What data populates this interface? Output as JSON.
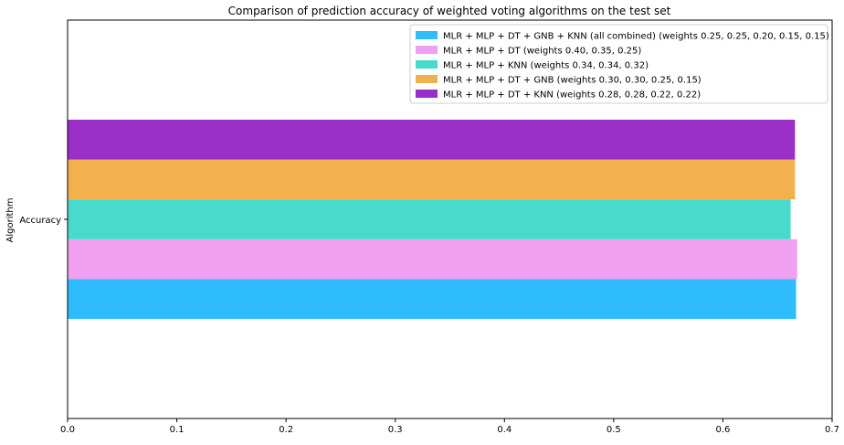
{
  "chart_data": {
    "type": "bar",
    "orientation": "horizontal",
    "title": "Comparison of prediction accuracy of weighted voting algorithms on the test set",
    "xlabel": "",
    "ylabel": "Algorithm",
    "categories": [
      "Accuracy"
    ],
    "xlim": [
      0,
      0.7
    ],
    "xticks": [
      "0.0",
      "0.1",
      "0.2",
      "0.3",
      "0.4",
      "0.5",
      "0.6",
      "0.7"
    ],
    "grid": false,
    "legend_position": "top-right",
    "series": [
      {
        "name": "MLR + MLP + DT + GNB + KNN (all combined) (weights 0.25, 0.25, 0.20, 0.15, 0.15)",
        "values": [
          0.667
        ],
        "color": "#2ebcfc"
      },
      {
        "name": "MLR + MLP + DT (weights 0.40, 0.35, 0.25)",
        "values": [
          0.668
        ],
        "color": "#f19ff0"
      },
      {
        "name": "MLR + MLP + KNN (weights 0.34, 0.34, 0.32)",
        "values": [
          0.662
        ],
        "color": "#48dbcc"
      },
      {
        "name": "MLR + MLP + DT + GNB (weights 0.30, 0.30, 0.25, 0.15)",
        "values": [
          0.666
        ],
        "color": "#f3b04e"
      },
      {
        "name": "MLR + MLP + DT + KNN (weights 0.28, 0.28, 0.22, 0.22)",
        "values": [
          0.666
        ],
        "color": "#9a2ec6"
      }
    ]
  }
}
